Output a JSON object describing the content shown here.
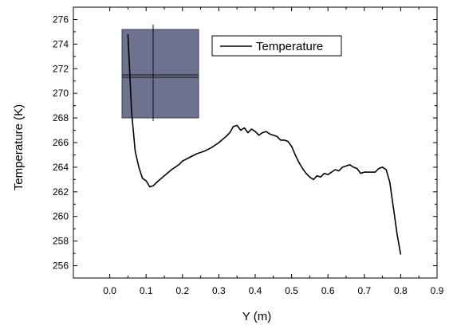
{
  "chart_data": {
    "type": "line",
    "xlabel": "Y (m)",
    "ylabel": "Temperature (K)",
    "xlim": [
      -0.1,
      0.9
    ],
    "ylim": [
      255,
      277
    ],
    "xticks": [
      "0.0",
      "0.1",
      "0.2",
      "0.3",
      "0.4",
      "0.5",
      "0.6",
      "0.7",
      "0.8",
      "0.9"
    ],
    "yticks": [
      "256",
      "258",
      "260",
      "262",
      "264",
      "266",
      "268",
      "270",
      "272",
      "274",
      "276"
    ],
    "legend": {
      "position": "top-center",
      "entries": [
        "Temperature"
      ]
    },
    "grid": false,
    "inset": {
      "kind": "image",
      "description": "grey rectangle with crosshair lines"
    },
    "series": [
      {
        "name": "Temperature",
        "color": "#000000",
        "x": [
          0.05,
          0.06,
          0.07,
          0.08,
          0.09,
          0.1,
          0.11,
          0.12,
          0.13,
          0.15,
          0.17,
          0.19,
          0.2,
          0.22,
          0.24,
          0.26,
          0.28,
          0.3,
          0.32,
          0.33,
          0.34,
          0.35,
          0.36,
          0.37,
          0.38,
          0.39,
          0.4,
          0.41,
          0.42,
          0.43,
          0.44,
          0.45,
          0.46,
          0.47,
          0.48,
          0.49,
          0.5,
          0.51,
          0.52,
          0.53,
          0.54,
          0.55,
          0.56,
          0.57,
          0.58,
          0.59,
          0.6,
          0.61,
          0.62,
          0.63,
          0.64,
          0.65,
          0.66,
          0.67,
          0.68,
          0.69,
          0.7,
          0.71,
          0.72,
          0.73,
          0.74,
          0.75,
          0.76,
          0.77,
          0.78,
          0.79,
          0.8
        ],
        "values": [
          274.8,
          268.5,
          265.3,
          264.0,
          263.1,
          262.9,
          262.4,
          262.5,
          262.8,
          263.3,
          263.8,
          264.2,
          264.5,
          264.8,
          265.1,
          265.3,
          265.6,
          266.0,
          266.5,
          266.8,
          267.3,
          267.4,
          267.0,
          267.2,
          266.8,
          267.1,
          266.9,
          266.6,
          266.8,
          266.9,
          266.7,
          266.6,
          266.5,
          266.2,
          266.2,
          266.1,
          265.7,
          265.0,
          264.4,
          263.9,
          263.5,
          263.2,
          263.0,
          263.3,
          263.2,
          263.5,
          263.4,
          263.6,
          263.8,
          263.7,
          264.0,
          264.1,
          264.2,
          264.0,
          263.9,
          263.5,
          263.6,
          263.6,
          263.6,
          263.6,
          263.9,
          264.0,
          263.8,
          262.8,
          260.7,
          258.6,
          256.9
        ]
      }
    ]
  }
}
